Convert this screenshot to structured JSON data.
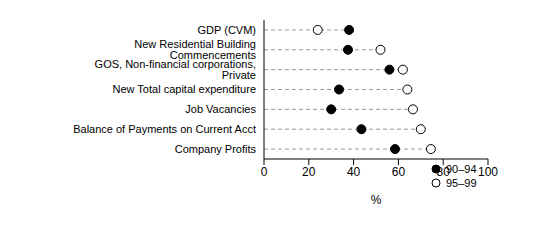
{
  "chart_data": {
    "type": "dot",
    "orientation": "horizontal",
    "categories": [
      "Company Profits",
      "Balance of Payments on Current Acct",
      "Job Vacancies",
      "New Total capital expenditure",
      "GOS, Non-financial corporations, Private",
      "New Residential Building Commencements",
      "GDP (CVM)"
    ],
    "series": [
      {
        "name": "90–94",
        "color": "#000000",
        "marker": "filled",
        "values": [
          58.5,
          43.5,
          30,
          33.5,
          56,
          37.5,
          38
        ]
      },
      {
        "name": "95–99",
        "color": "#000000",
        "marker": "open",
        "values": [
          74.5,
          70,
          66.5,
          64,
          62,
          52,
          24
        ]
      }
    ],
    "xlabel": "%",
    "xlim": [
      0,
      100
    ],
    "xticks": [
      0,
      20,
      40,
      60,
      80,
      100
    ],
    "grid": false,
    "legend": "lower right"
  }
}
